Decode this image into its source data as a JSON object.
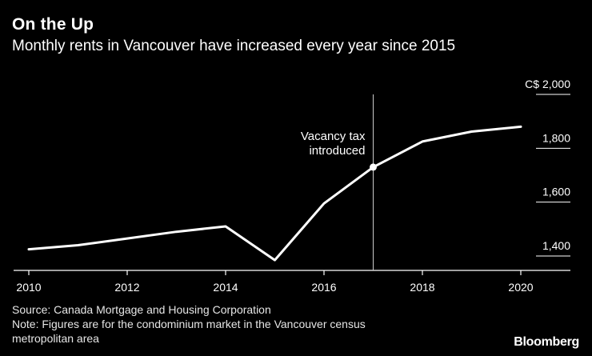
{
  "header": {
    "title": "On the Up",
    "subtitle": "Monthly rents in Vancouver have increased every year since 2015"
  },
  "footer": {
    "source": "Source: Canada Mortgage and Housing Corporation",
    "note_line1": "Note: Figures are for the condominium market in the Vancouver census",
    "note_line2": "metropolitan area",
    "brand": "Bloomberg"
  },
  "chart_data": {
    "type": "line",
    "title": "On the Up",
    "subtitle": "Monthly rents in Vancouver have increased every year since 2015",
    "xlabel": "",
    "ylabel": "",
    "x": [
      2010,
      2011,
      2012,
      2013,
      2014,
      2015,
      2016,
      2017,
      2018,
      2019,
      2020
    ],
    "series": [
      {
        "values": [
          1425,
          1440,
          1465,
          1490,
          1510,
          1385,
          1595,
          1730,
          1825,
          1862,
          1880
        ]
      }
    ],
    "xlim": [
      2009.7,
      2020.9
    ],
    "ylim": [
      1375,
      2020
    ],
    "x_ticks": [
      2010,
      2012,
      2014,
      2016,
      2018,
      2020
    ],
    "x_tick_labels": [
      "2010",
      "2012",
      "2014",
      "2016",
      "2018",
      "2020"
    ],
    "y_ticks": [
      1400,
      1600,
      1800,
      2000
    ],
    "y_tick_labels": [
      "1,400",
      "1,600",
      "1,800",
      "C$ 2,000"
    ],
    "y_axis_position": "right",
    "grid": false,
    "annotations": [
      {
        "x": 2017,
        "y": 1730,
        "text_lines": [
          "Vacancy tax",
          "introduced"
        ]
      }
    ],
    "colors": {
      "background": "#000000",
      "line": "#ffffff",
      "axis": "#ffffff",
      "vline": "#cccccc"
    }
  }
}
